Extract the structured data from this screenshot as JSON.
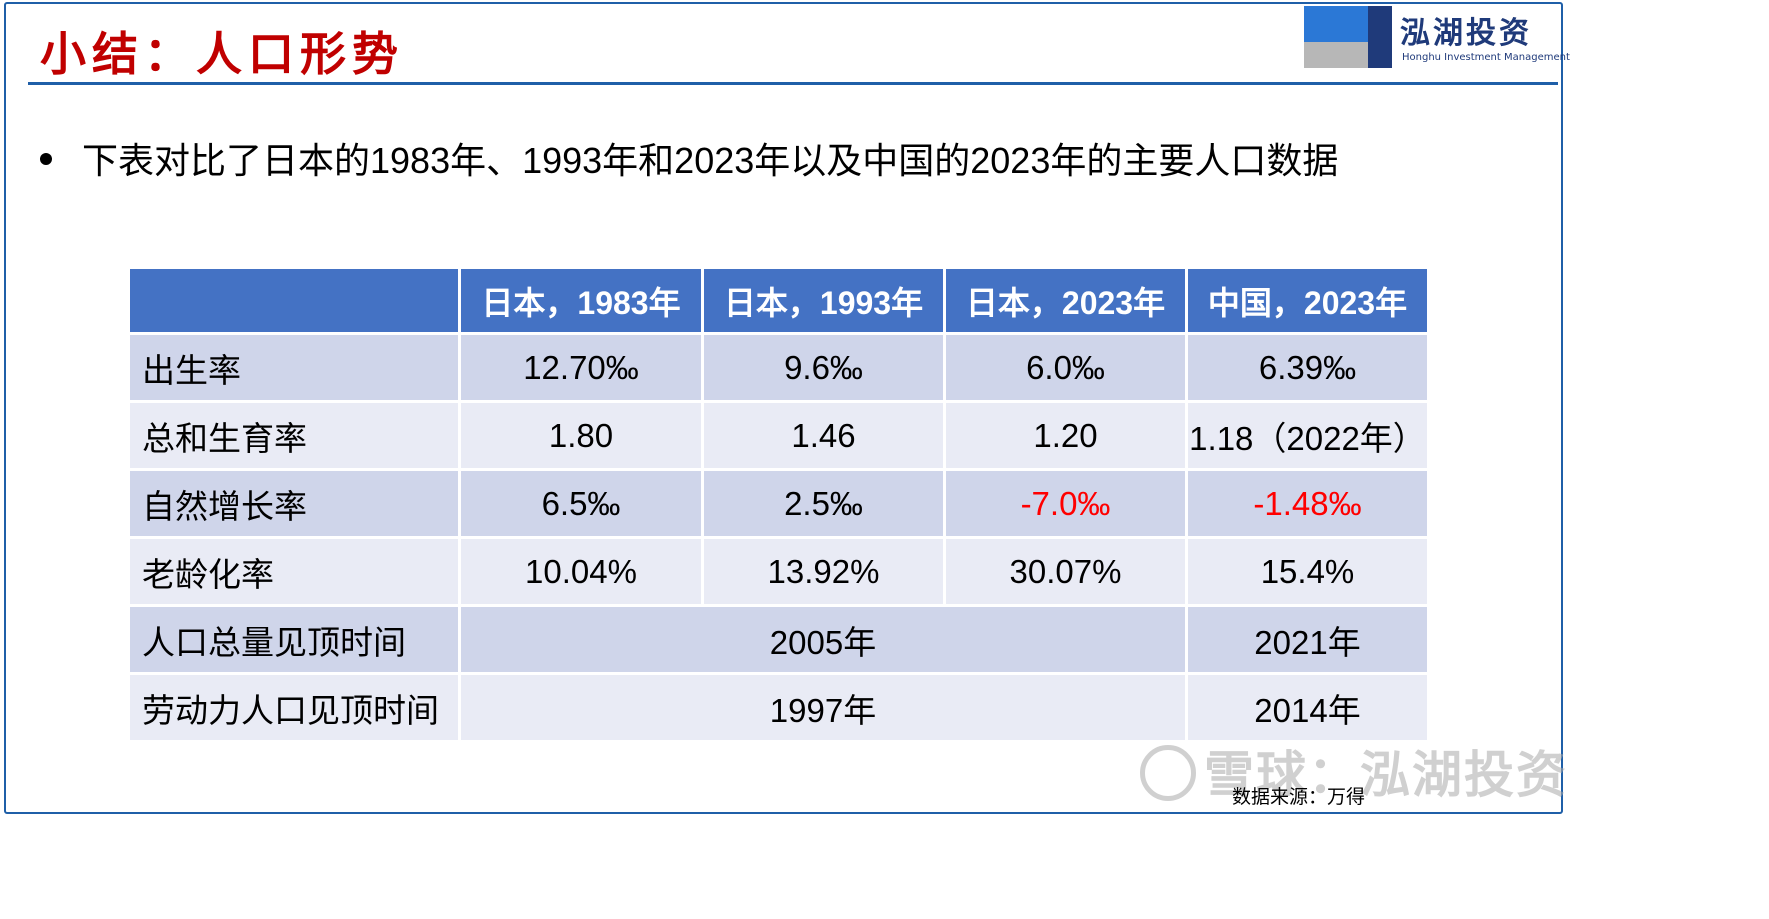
{
  "header": {
    "title": "小结：人口形势",
    "logo": {
      "name_cn": "泓湖投资",
      "name_en": "Honghu Investment Management"
    }
  },
  "bullet": "下表对比了日本的1983年、1993年和2023年以及中国的2023年的主要人口数据",
  "table": {
    "columns": [
      "",
      "日本，1983年",
      "日本，1993年",
      "日本，2023年",
      "中国，2023年"
    ],
    "rows": [
      {
        "label": "出生率",
        "values": [
          "12.70‰",
          "9.6‰",
          "6.0‰",
          "6.39‰"
        ]
      },
      {
        "label": "总和生育率",
        "values": [
          "1.80",
          "1.46",
          "1.20",
          "1.18（2022年）"
        ]
      },
      {
        "label": "自然增长率",
        "values": [
          "6.5‰",
          "2.5‰",
          "-7.0‰",
          "-1.48‰"
        ]
      },
      {
        "label": "老龄化率",
        "values": [
          "10.04%",
          "13.92%",
          "30.07%",
          "15.4%"
        ]
      },
      {
        "label": "人口总量见顶时间",
        "japan": "2005年",
        "china": "2021年"
      },
      {
        "label": "劳动力人口见顶时间",
        "japan": "1997年",
        "china": "2014年"
      }
    ],
    "negative_color": "#ff0000",
    "header_color": "#4472c4"
  },
  "watermark": "雪球：泓湖投资",
  "source": "数据来源：万得"
}
